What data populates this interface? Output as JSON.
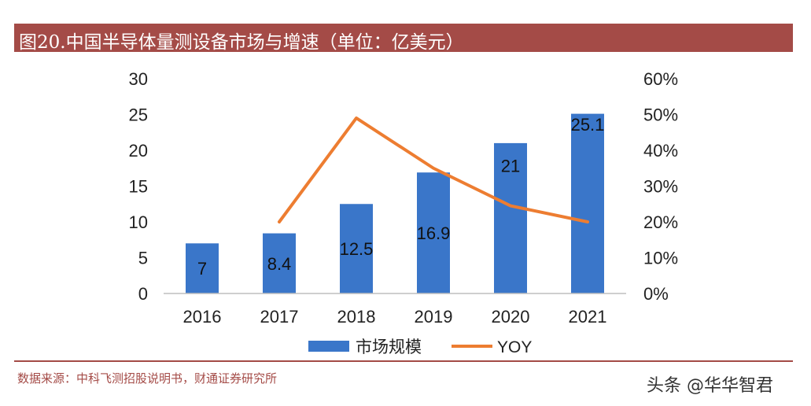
{
  "title": "图20.中国半导体量测设备市场与增速（单位：亿美元）",
  "source": "数据来源：中科飞测招股说明书，财通证券研究所",
  "watermark": "头条 @华华智君",
  "colors": {
    "bar": "#3a76c9",
    "line": "#ed7d31",
    "title_bg": "#a44b47",
    "source_text": "#a44b47"
  },
  "chart_data": {
    "type": "bar",
    "categories": [
      "2016",
      "2017",
      "2018",
      "2019",
      "2020",
      "2021"
    ],
    "series": [
      {
        "name": "市场规模",
        "type": "bar",
        "axis": "left",
        "values": [
          7,
          8.4,
          12.5,
          16.9,
          21,
          25.1
        ],
        "labels": [
          "7",
          "8.4",
          "12.5",
          "16.9",
          "21",
          "25.1"
        ]
      },
      {
        "name": "YOY",
        "type": "line",
        "axis": "right",
        "values": [
          null,
          0.2,
          0.49,
          0.35,
          0.245,
          0.2
        ]
      }
    ],
    "y_left": {
      "min": 0,
      "max": 30,
      "ticks": [
        "0",
        "5",
        "10",
        "15",
        "20",
        "25",
        "30"
      ]
    },
    "y_right": {
      "min": 0,
      "max": 0.6,
      "ticks": [
        "0%",
        "10%",
        "20%",
        "30%",
        "40%",
        "50%",
        "60%"
      ]
    },
    "grid": false,
    "legend": "bottom"
  }
}
